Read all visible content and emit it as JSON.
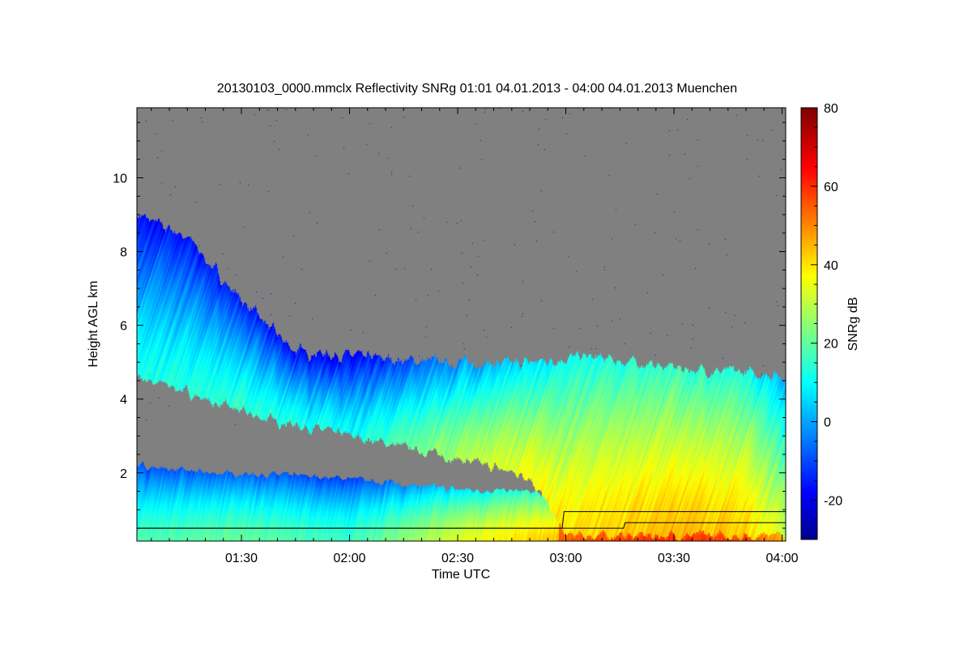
{
  "chart_data": {
    "type": "heatmap",
    "title": "20130103_0000.mmclx Reflectivity SNRg   01:01 04.01.2013 - 04:00 04.01.2013 Muenchen",
    "xlabel": "Time UTC",
    "ylabel": "Height AGL km",
    "colorbar_label": "SNRg dB",
    "x_ticks": [
      "01:30",
      "02:00",
      "02:30",
      "03:00",
      "03:30",
      "04:00"
    ],
    "x_tick_minutes": [
      90,
      120,
      150,
      180,
      210,
      240
    ],
    "xlim_minutes": [
      61,
      241
    ],
    "y_ticks": [
      2,
      4,
      6,
      8,
      10
    ],
    "ylim": [
      0.15,
      11.9
    ],
    "colorbar_ticks": [
      -20,
      0,
      20,
      40,
      60,
      80
    ],
    "colorbar_range": [
      -30,
      80
    ],
    "colormap": [
      "#00008f",
      "#0000ff",
      "#00ffff",
      "#ffff00",
      "#ff0000",
      "#7f0000"
    ],
    "background_color": "#808080",
    "features": {
      "upper_cloud_top_km": {
        "t": [
          61,
          75,
          86,
          95,
          105,
          135,
          165,
          185,
          215,
          241
        ],
        "v": [
          9.0,
          8.4,
          7.1,
          6.2,
          5.3,
          5.05,
          4.95,
          5.15,
          4.8,
          4.65
        ]
      },
      "upper_cloud_base_km": {
        "t": [
          61,
          72,
          82,
          95,
          110,
          140,
          170,
          180,
          241
        ],
        "v": [
          4.6,
          4.3,
          3.9,
          3.5,
          3.2,
          2.6,
          1.9,
          0.3,
          0.3
        ]
      },
      "lower_cloud_top_km": {
        "t": [
          61,
          80,
          100,
          120,
          150,
          168,
          175,
          241
        ],
        "v": [
          2.2,
          2.0,
          1.95,
          1.85,
          1.55,
          1.5,
          1.4,
          1.4
        ]
      },
      "snr_core_db": {
        "t": [
          61,
          90,
          120,
          150,
          180,
          210,
          230,
          241
        ],
        "v": [
          12,
          15,
          10,
          28,
          40,
          45,
          42,
          30
        ]
      },
      "melting_layer_line_km": {
        "t": [
          61,
          179,
          179.5,
          241
        ],
        "v": [
          0.5,
          0.5,
          0.95,
          0.95
        ]
      },
      "second_line_km": {
        "t": [
          61,
          196,
          196.5,
          241
        ],
        "v": [
          0.5,
          0.5,
          0.65,
          0.65
        ]
      }
    }
  }
}
